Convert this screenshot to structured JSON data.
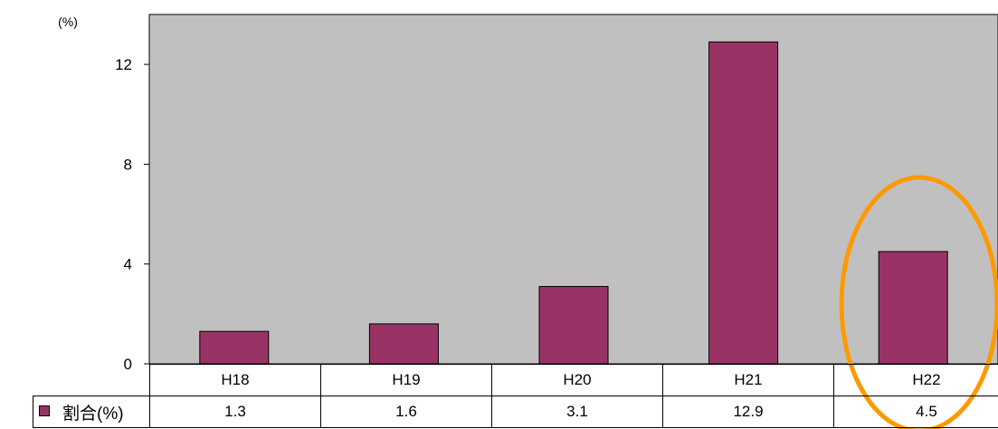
{
  "chart_data": {
    "type": "bar",
    "unit_label": "(%)",
    "categories": [
      "H18",
      "H19",
      "H20",
      "H21",
      "H22"
    ],
    "series": [
      {
        "name": "割合(%)",
        "values": [
          1.3,
          1.6,
          3.1,
          12.9,
          4.5
        ],
        "value_labels": [
          "1.3",
          "1.6",
          "3.1",
          "12.9",
          "4.5"
        ]
      }
    ],
    "ylim": [
      0,
      14
    ],
    "yticks": [
      0,
      4,
      8,
      12
    ],
    "highlight": "H22",
    "grid": false,
    "legend": "data-table",
    "colors": {
      "bar": "#993366",
      "plot_background": "#c0c0c0",
      "highlight_ring": "#ff9900"
    }
  }
}
